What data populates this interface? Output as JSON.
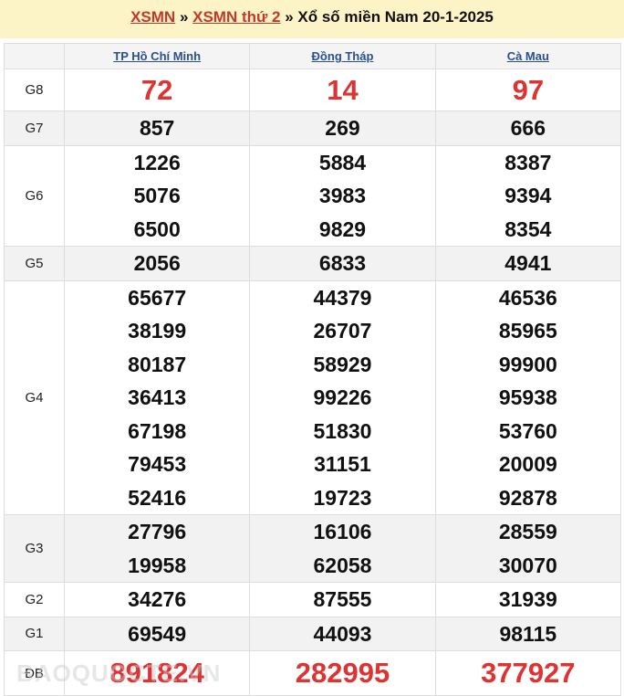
{
  "header": {
    "link1": "XSMN",
    "sep": " » ",
    "link2": "XSMN thứ 2",
    "rest": " » Xổ số miền Nam 20-1-2025"
  },
  "provinces": [
    "TP Hồ Chí Minh",
    "Đồng Tháp",
    "Cà Mau"
  ],
  "rows": [
    {
      "label": "G8",
      "values": [
        [
          "72"
        ],
        [
          "14"
        ],
        [
          "97"
        ]
      ],
      "highlight": true
    },
    {
      "label": "G7",
      "values": [
        [
          "857"
        ],
        [
          "269"
        ],
        [
          "666"
        ]
      ]
    },
    {
      "label": "G6",
      "values": [
        [
          "1226",
          "5076",
          "6500"
        ],
        [
          "5884",
          "3983",
          "9829"
        ],
        [
          "8387",
          "9394",
          "8354"
        ]
      ]
    },
    {
      "label": "G5",
      "values": [
        [
          "2056"
        ],
        [
          "6833"
        ],
        [
          "4941"
        ]
      ]
    },
    {
      "label": "G4",
      "values": [
        [
          "65677",
          "38199",
          "80187",
          "36413",
          "67198",
          "79453",
          "52416"
        ],
        [
          "44379",
          "26707",
          "58929",
          "99226",
          "51830",
          "31151",
          "19723"
        ],
        [
          "46536",
          "85965",
          "99900",
          "95938",
          "53760",
          "20009",
          "92878"
        ]
      ]
    },
    {
      "label": "G3",
      "values": [
        [
          "27796",
          "19958"
        ],
        [
          "16106",
          "62058"
        ],
        [
          "28559",
          "30070"
        ]
      ]
    },
    {
      "label": "G2",
      "values": [
        [
          "34276"
        ],
        [
          "87555"
        ],
        [
          "31939"
        ]
      ]
    },
    {
      "label": "G1",
      "values": [
        [
          "69549"
        ],
        [
          "44093"
        ],
        [
          "98115"
        ]
      ]
    },
    {
      "label": "ĐB",
      "values": [
        [
          "891824"
        ],
        [
          "282995"
        ],
        [
          "377927"
        ]
      ],
      "highlight": true
    }
  ],
  "watermark": "BAOQUOCTE.VN",
  "colors": {
    "accent": "#d33333",
    "header_bg": "#fcf3c7",
    "link": "#2a4f8f"
  }
}
